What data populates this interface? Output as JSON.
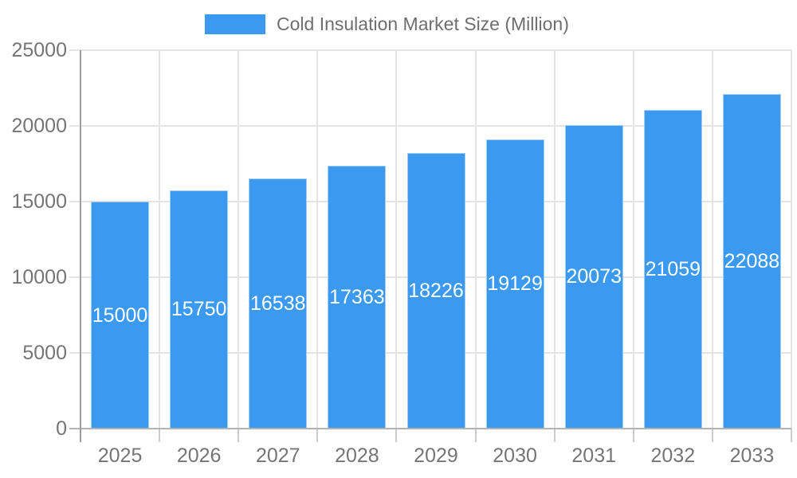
{
  "chart_data": {
    "type": "bar",
    "legend": [
      "Cold Insulation Market Size (Million)"
    ],
    "legend_position": "top-center",
    "categories": [
      "2025",
      "2026",
      "2027",
      "2028",
      "2029",
      "2030",
      "2031",
      "2032",
      "2033"
    ],
    "values": [
      15000,
      15750,
      16538,
      17363,
      18226,
      19129,
      20073,
      21059,
      22088
    ],
    "bar_labels": [
      "15000",
      "15750",
      "16538",
      "17363",
      "18226",
      "19129",
      "20073",
      "21059",
      "22088"
    ],
    "ylim": [
      0,
      25000
    ],
    "yticks": [
      0,
      5000,
      10000,
      15000,
      20000,
      25000
    ],
    "grid": true,
    "xlabel": "",
    "ylabel": "",
    "colors": {
      "bar": "#3b99ef",
      "bar_edge": "#a6cdf3",
      "bar_label": "#ffffff",
      "axis_text": "#757575",
      "legend_text": "#6e6e6e",
      "grid": "#e4e4e4",
      "x_axis_line": "#b3b3b3",
      "y_axis_line": "#9e9e9e",
      "tick": "#cccccc"
    }
  }
}
